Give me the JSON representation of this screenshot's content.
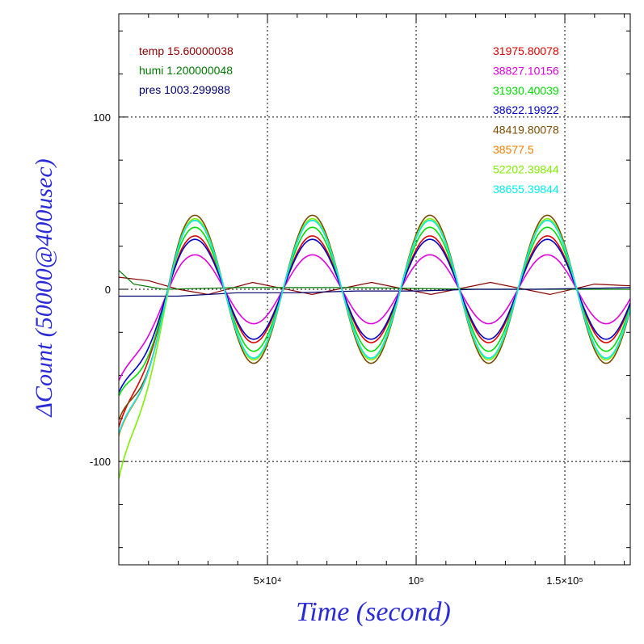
{
  "chart_data": {
    "type": "line",
    "xlabel": "Time (second)",
    "ylabel": "ΔCount (50000@400usec)",
    "xlim": [
      0,
      172000
    ],
    "ylim": [
      -160,
      160
    ],
    "grid": true,
    "x_tick_labels": [
      {
        "value": 50000,
        "label": "5×10⁴"
      },
      {
        "value": 100000,
        "label": "10⁵"
      },
      {
        "value": 150000,
        "label": "1.5×10⁵"
      }
    ],
    "y_tick_labels": [
      {
        "value": 100,
        "label": "100"
      },
      {
        "value": 0,
        "label": "0"
      },
      {
        "value": -100,
        "label": "-100"
      }
    ],
    "env_legend": [
      {
        "name": "temp",
        "value": "15.60000038",
        "color": "#8b0000"
      },
      {
        "name": "humi",
        "value": "1.200000048",
        "color": "#007a00"
      },
      {
        "name": "pres",
        "value": "1003.299988",
        "color": "#00006e"
      }
    ],
    "env_series": [
      {
        "legend_index": 0,
        "color": "#8b0000",
        "x": [
          0,
          10000,
          20000,
          30000,
          45000,
          65000,
          85000,
          105000,
          125000,
          145000,
          160000,
          172000
        ],
        "y": [
          7,
          5,
          0,
          -3,
          4,
          -3,
          4,
          -3,
          4,
          -3,
          3,
          2
        ]
      },
      {
        "legend_index": 1,
        "color": "#007a00",
        "x": [
          0,
          5000,
          15000,
          40000,
          80000,
          120000,
          172000
        ],
        "y": [
          11,
          3,
          0,
          1,
          1,
          0,
          0
        ]
      },
      {
        "legend_index": 2,
        "color": "#00006e",
        "x": [
          0,
          20000,
          40000,
          60000,
          80000,
          100000,
          120000,
          140000,
          172000
        ],
        "y": [
          -4,
          -4,
          -2,
          -2,
          -1,
          -1,
          0,
          0,
          1
        ]
      }
    ],
    "series": [
      {
        "name": "31975.80078",
        "color": "#e00000",
        "amplitude": 31,
        "start": -80
      },
      {
        "name": "38827.10156",
        "color": "#e000e0",
        "amplitude": 20,
        "start": -53
      },
      {
        "name": "31930.40039",
        "color": "#00e000",
        "amplitude": 36,
        "start": -62
      },
      {
        "name": "38622.19922",
        "color": "#0000c8",
        "amplitude": 29,
        "start": -60
      },
      {
        "name": "48419.80078",
        "color": "#7a4a00",
        "amplitude": 43,
        "start": -76
      },
      {
        "name": "38577.5",
        "color": "#f08000",
        "amplitude": 40,
        "start": -85
      },
      {
        "name": "52202.39844",
        "color": "#80f000",
        "amplitude": 41,
        "start": -110
      },
      {
        "name": "38655.39844",
        "color": "#00f0f0",
        "amplitude": 40,
        "start": -84
      }
    ],
    "wave": {
      "period": 39500,
      "zero_crossing": 35500,
      "settle_time": 22000
    }
  }
}
